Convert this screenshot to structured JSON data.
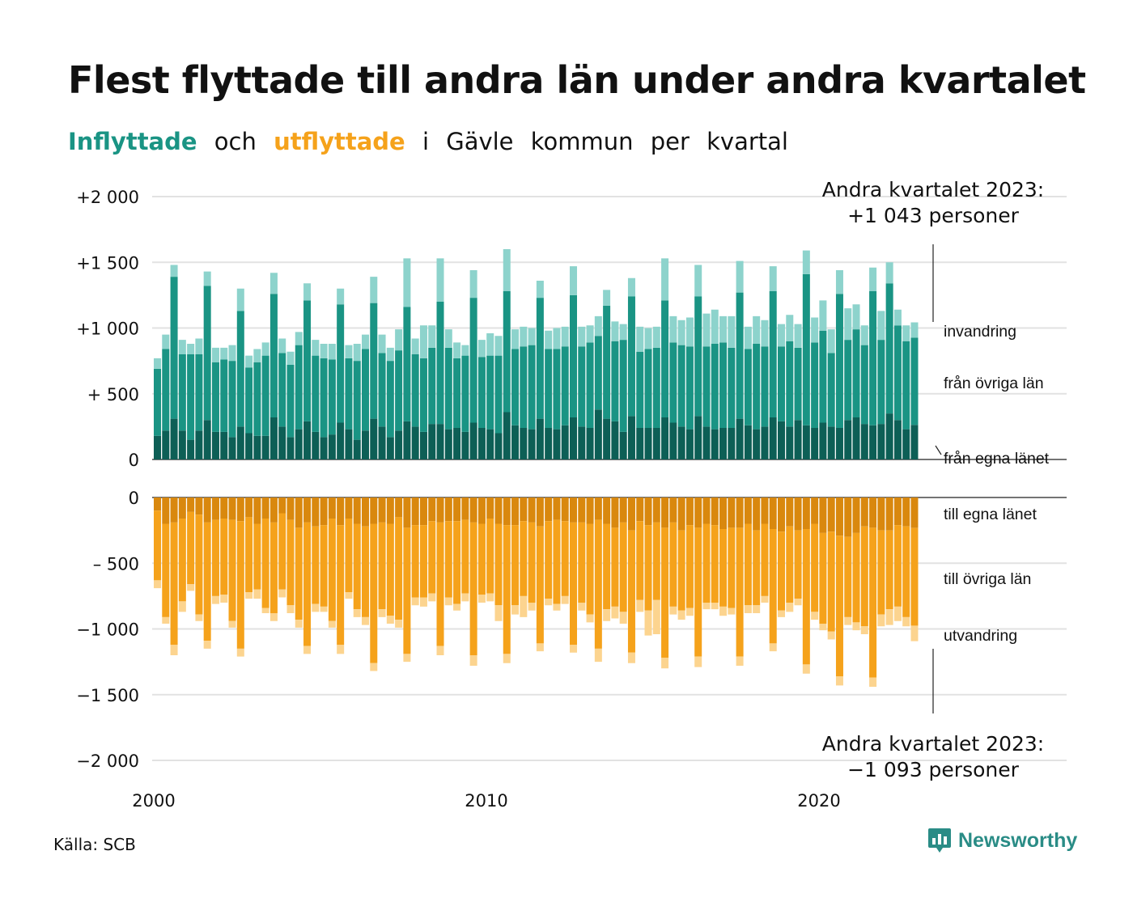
{
  "header": {
    "title": "Flest flyttade till andra län under andra kvartalet",
    "subtitle": {
      "word_in": "Inflyttade",
      "word_och": "och",
      "word_out": "utflyttade",
      "rest": [
        "i",
        "Gävle",
        "kommun",
        "per",
        "kvartal"
      ]
    }
  },
  "colors": {
    "in_egna": "#0d5f56",
    "in_ovriga": "#1a9484",
    "in_invandring": "#8dd3cc",
    "out_egna": "#d9880e",
    "out_ovriga": "#f5a21b",
    "out_utvandring": "#fcd48f",
    "accent_in": "#1a9484",
    "accent_out": "#f5a21b"
  },
  "footer": {
    "source": "Källa: SCB",
    "brand": "Newsworthy",
    "brand_icon": "newsworthy-logo-icon"
  },
  "chart_data": {
    "type": "bar",
    "stacked": true,
    "x_start": "2000 Q1",
    "x_end": "2023 Q2",
    "xticks": [
      "2000",
      "2010",
      "2020"
    ],
    "yticks_top": [
      "+2 000",
      "+1 500",
      "+1 000",
      "+  500",
      "0"
    ],
    "yticks_bottom": [
      "0",
      "–  500",
      "−1 000",
      "−1 500",
      "−2 000"
    ],
    "ylim_top": [
      0,
      2000
    ],
    "ylim_bottom": [
      -2000,
      0
    ],
    "grid": true,
    "series_labels": {
      "in_invandring": "invandring",
      "in_ovriga": "från övriga län",
      "in_egna": "från egna länet",
      "out_egna": "till egna länet",
      "out_ovriga": "till övriga län",
      "out_utvandring": "utvandring"
    },
    "annotation_in": {
      "line1": "Andra kvartalet 2023:",
      "line2": "+1 043 personer"
    },
    "annotation_out": {
      "line1": "Andra kvartalet 2023:",
      "line2": "−1 093 personer"
    },
    "inflow": {
      "from_egna_lanet": [
        180,
        220,
        310,
        220,
        150,
        220,
        300,
        210,
        210,
        170,
        250,
        200,
        180,
        180,
        320,
        250,
        170,
        230,
        290,
        210,
        170,
        190,
        280,
        230,
        150,
        220,
        310,
        250,
        170,
        220,
        290,
        250,
        210,
        270,
        270,
        230,
        240,
        210,
        280,
        240,
        230,
        200,
        360,
        260,
        240,
        230,
        310,
        240,
        230,
        260,
        320,
        250,
        240,
        380,
        310,
        290,
        210,
        330,
        240,
        240,
        240,
        320,
        280,
        250,
        230,
        330,
        250,
        230,
        240,
        240,
        310,
        260,
        230,
        250,
        320,
        290,
        250,
        300,
        260,
        240,
        280,
        250,
        240,
        300,
        320,
        270,
        260,
        270,
        350,
        300,
        230,
        263
      ],
      "from_ovriga_lan": [
        510,
        620,
        1080,
        580,
        650,
        580,
        1020,
        530,
        550,
        580,
        880,
        500,
        560,
        610,
        940,
        560,
        550,
        640,
        920,
        580,
        600,
        570,
        900,
        540,
        600,
        620,
        880,
        560,
        580,
        610,
        870,
        550,
        560,
        580,
        930,
        620,
        530,
        580,
        950,
        540,
        560,
        590,
        920,
        580,
        620,
        640,
        920,
        600,
        610,
        600,
        930,
        610,
        650,
        560,
        860,
        610,
        700,
        910,
        580,
        600,
        610,
        890,
        610,
        620,
        630,
        910,
        610,
        650,
        650,
        610,
        960,
        580,
        650,
        610,
        960,
        570,
        650,
        550,
        1150,
        650,
        700,
        560,
        1020,
        610,
        670,
        600,
        1020,
        640,
        990,
        720,
        670,
        664
      ],
      "invandring": [
        80,
        110,
        90,
        110,
        80,
        120,
        110,
        110,
        90,
        120,
        170,
        90,
        100,
        100,
        160,
        110,
        100,
        100,
        130,
        120,
        110,
        120,
        120,
        100,
        130,
        110,
        200,
        140,
        100,
        160,
        370,
        120,
        250,
        170,
        330,
        140,
        120,
        80,
        210,
        130,
        170,
        150,
        320,
        150,
        150,
        130,
        130,
        140,
        160,
        150,
        220,
        150,
        130,
        150,
        120,
        150,
        120,
        140,
        190,
        160,
        160,
        320,
        200,
        190,
        220,
        240,
        250,
        260,
        200,
        240,
        240,
        170,
        210,
        200,
        190,
        170,
        200,
        180,
        180,
        190,
        230,
        180,
        180,
        240,
        190,
        150,
        180,
        220,
        160,
        120,
        120,
        116
      ]
    },
    "outflow": {
      "to_egna_lanet": [
        -100,
        -200,
        -190,
        -160,
        -110,
        -130,
        -190,
        -170,
        -160,
        -170,
        -180,
        -150,
        -200,
        -160,
        -190,
        -120,
        -170,
        -230,
        -190,
        -220,
        -210,
        -160,
        -210,
        -160,
        -200,
        -220,
        -200,
        -190,
        -200,
        -150,
        -230,
        -210,
        -210,
        -180,
        -190,
        -180,
        -180,
        -170,
        -190,
        -200,
        -160,
        -200,
        -210,
        -210,
        -180,
        -190,
        -220,
        -180,
        -170,
        -180,
        -190,
        -190,
        -200,
        -170,
        -200,
        -230,
        -190,
        -250,
        -180,
        -210,
        -190,
        -230,
        -190,
        -250,
        -210,
        -230,
        -200,
        -210,
        -240,
        -230,
        -230,
        -200,
        -250,
        -200,
        -240,
        -260,
        -220,
        -250,
        -240,
        -200,
        -270,
        -260,
        -290,
        -300,
        -270,
        -220,
        -230,
        -250,
        -250,
        -210,
        -220,
        -232
      ],
      "to_ovriga_lan": [
        -530,
        -710,
        -930,
        -630,
        -550,
        -760,
        -900,
        -580,
        -580,
        -770,
        -970,
        -570,
        -500,
        -680,
        -690,
        -580,
        -650,
        -700,
        -940,
        -590,
        -620,
        -780,
        -910,
        -560,
        -650,
        -690,
        -1060,
        -660,
        -700,
        -780,
        -960,
        -550,
        -550,
        -550,
        -940,
        -580,
        -630,
        -560,
        -1010,
        -540,
        -570,
        -620,
        -980,
        -610,
        -570,
        -610,
        -890,
        -590,
        -640,
        -570,
        -930,
        -610,
        -690,
        -980,
        -650,
        -600,
        -680,
        -930,
        -600,
        -650,
        -590,
        -990,
        -640,
        -610,
        -630,
        -980,
        -600,
        -590,
        -590,
        -610,
        -980,
        -620,
        -570,
        -550,
        -870,
        -600,
        -580,
        -520,
        -1030,
        -670,
        -690,
        -760,
        -1070,
        -610,
        -680,
        -760,
        -1140,
        -640,
        -600,
        -620,
        -690,
        -743
      ],
      "utvandring": [
        -60,
        -50,
        -80,
        -80,
        -50,
        -50,
        -60,
        -60,
        -60,
        -50,
        -60,
        -50,
        -70,
        -40,
        -60,
        -60,
        -60,
        -60,
        -60,
        -60,
        -40,
        -50,
        -70,
        -50,
        -60,
        -60,
        -60,
        -60,
        -60,
        -60,
        -60,
        -60,
        -70,
        -60,
        -70,
        -60,
        -50,
        -60,
        -80,
        -60,
        -60,
        -120,
        -70,
        -70,
        -160,
        -60,
        -60,
        -50,
        -50,
        -60,
        -60,
        -60,
        -60,
        -100,
        -90,
        -90,
        -90,
        -80,
        -90,
        -190,
        -260,
        -80,
        -60,
        -70,
        -60,
        -80,
        -50,
        -50,
        -70,
        -50,
        -70,
        -60,
        -60,
        -50,
        -60,
        -50,
        -70,
        -50,
        -70,
        -60,
        -50,
        -60,
        -70,
        -60,
        -60,
        -60,
        -70,
        -90,
        -120,
        -110,
        -70,
        -118
      ]
    }
  }
}
